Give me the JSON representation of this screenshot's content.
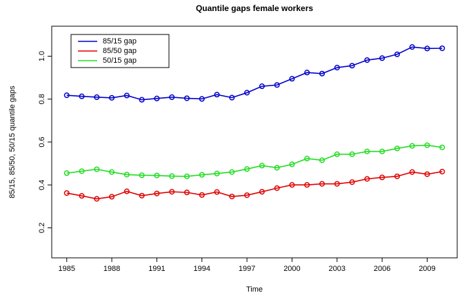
{
  "chart_data": {
    "type": "line",
    "title": "Quantile gaps female workers",
    "xlabel": "Time",
    "ylabel": "85/15, 85/50, 50/15 quantile gaps",
    "x": [
      1985,
      1986,
      1987,
      1988,
      1989,
      1990,
      1991,
      1992,
      1993,
      1994,
      1995,
      1996,
      1997,
      1998,
      1999,
      2000,
      2001,
      2002,
      2003,
      2004,
      2005,
      2006,
      2007,
      2008,
      2009,
      2010
    ],
    "series": [
      {
        "name": "85/15 gap",
        "color": "#0000cc",
        "values": [
          0.818,
          0.813,
          0.809,
          0.806,
          0.817,
          0.797,
          0.803,
          0.809,
          0.804,
          0.801,
          0.821,
          0.807,
          0.83,
          0.86,
          0.866,
          0.895,
          0.924,
          0.919,
          0.947,
          0.956,
          0.982,
          0.991,
          1.009,
          1.043,
          1.036,
          1.037
        ]
      },
      {
        "name": "85/50 gap",
        "color": "#e00000",
        "values": [
          0.362,
          0.349,
          0.335,
          0.345,
          0.37,
          0.35,
          0.36,
          0.368,
          0.365,
          0.353,
          0.367,
          0.346,
          0.352,
          0.368,
          0.385,
          0.4,
          0.4,
          0.405,
          0.405,
          0.413,
          0.428,
          0.435,
          0.44,
          0.46,
          0.45,
          0.462
        ]
      },
      {
        "name": "50/15 gap",
        "color": "#22dd22",
        "values": [
          0.455,
          0.464,
          0.473,
          0.46,
          0.448,
          0.445,
          0.444,
          0.441,
          0.44,
          0.447,
          0.453,
          0.46,
          0.474,
          0.49,
          0.48,
          0.496,
          0.523,
          0.515,
          0.543,
          0.543,
          0.556,
          0.556,
          0.57,
          0.582,
          0.585,
          0.575
        ]
      }
    ],
    "xlim": [
      1984,
      2011
    ],
    "xticks": [
      1985,
      1988,
      1991,
      1994,
      1997,
      2000,
      2003,
      2006,
      2009
    ],
    "ylim": [
      0.06,
      1.14
    ],
    "yticks": [
      0.2,
      0.4,
      0.6,
      0.8,
      {
        "value": 1.0,
        "label": "1.0"
      }
    ],
    "legend": "top-left"
  }
}
